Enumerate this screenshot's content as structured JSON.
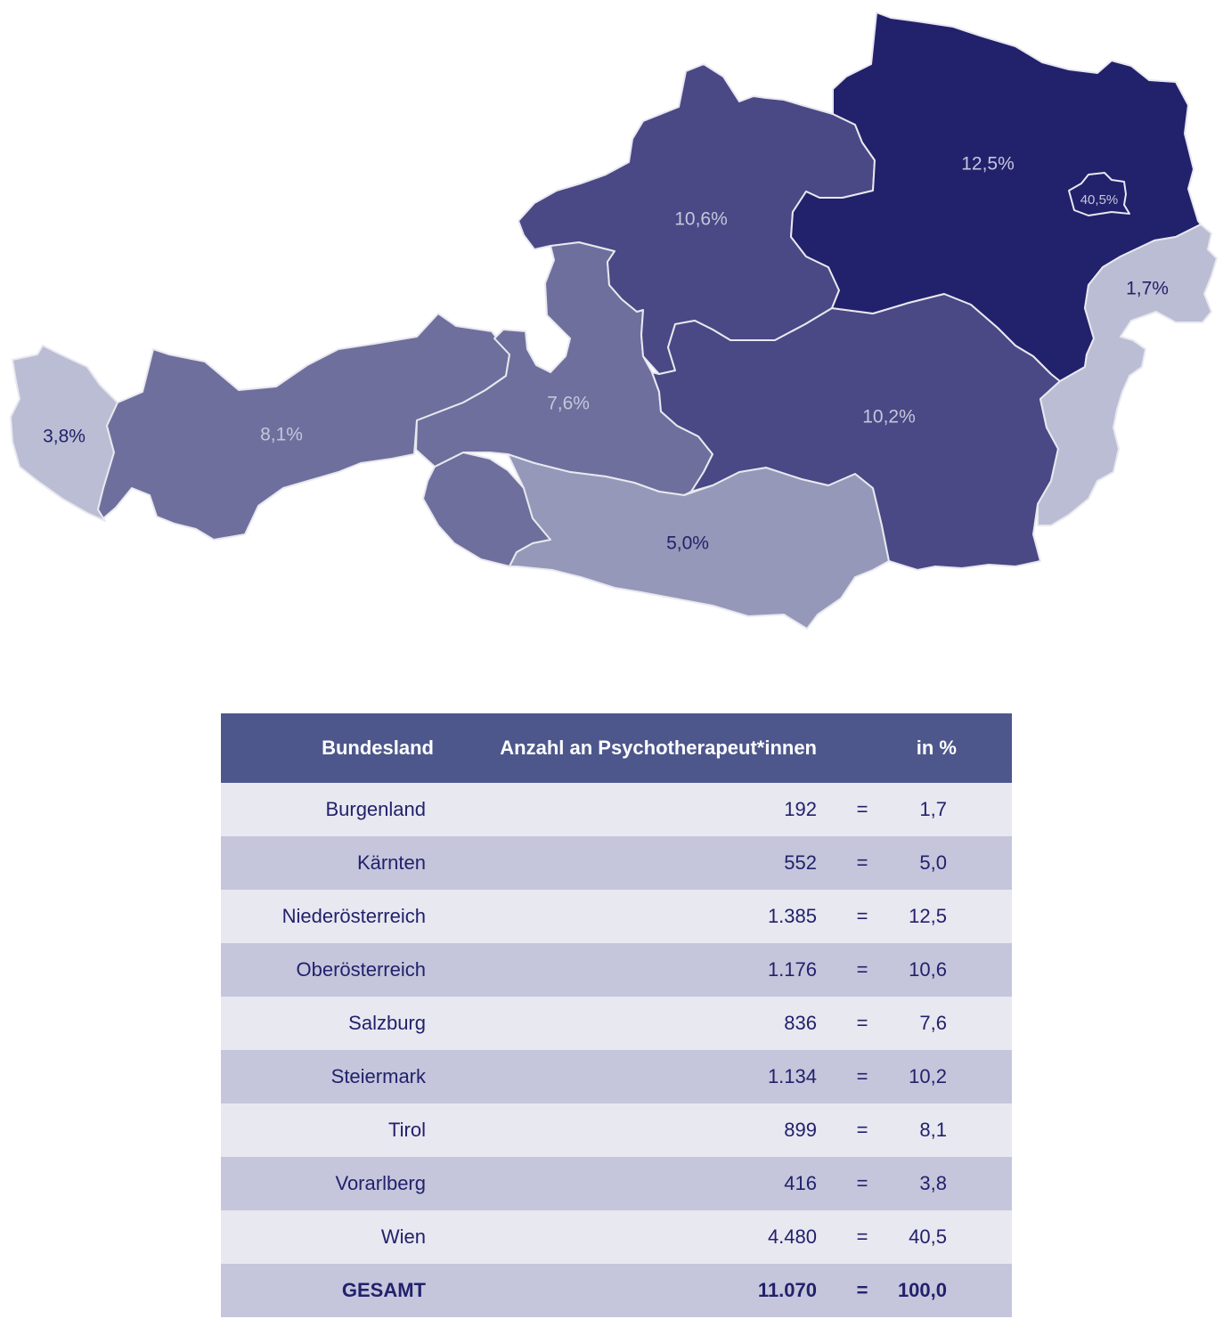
{
  "map": {
    "regions": [
      {
        "id": "vorarlberg",
        "label": "3,8%",
        "fill": "#bbbdd4",
        "label_color": "#22216b"
      },
      {
        "id": "tirol",
        "label": "8,1%",
        "fill": "#6f6f9d",
        "label_color": "#c5c6dc"
      },
      {
        "id": "salzburg",
        "label": "7,6%",
        "fill": "#6f6f9d",
        "label_color": "#c5c6dc"
      },
      {
        "id": "kaernten",
        "label": "5,0%",
        "fill": "#9698b9",
        "label_color": "#22216b"
      },
      {
        "id": "oberoesterreich",
        "label": "10,6%",
        "fill": "#4a4885",
        "label_color": "#c5c6dc"
      },
      {
        "id": "steiermark",
        "label": "10,2%",
        "fill": "#4a4885",
        "label_color": "#c5c6dc"
      },
      {
        "id": "niederoesterreich",
        "label": "12,5%",
        "fill": "#22216b",
        "label_color": "#c5c6dc"
      },
      {
        "id": "wien",
        "label": "40,5%",
        "fill": "#22216b",
        "label_color": "#c5c6dc"
      },
      {
        "id": "burgenland",
        "label": "1,7%",
        "fill": "#bbbdd4",
        "label_color": "#22216b"
      }
    ]
  },
  "table": {
    "header": {
      "land": "Bundesland",
      "count": "Anzahl an Psychotherapeut*innen",
      "pct": "in %"
    },
    "rows": [
      {
        "land": "Burgenland",
        "count": "192",
        "eq": "=",
        "pct": "1,7"
      },
      {
        "land": "Kärnten",
        "count": "552",
        "eq": "=",
        "pct": "5,0"
      },
      {
        "land": "Niederösterreich",
        "count": "1.385",
        "eq": "=",
        "pct": "12,5"
      },
      {
        "land": "Oberösterreich",
        "count": "1.176",
        "eq": "=",
        "pct": "10,6"
      },
      {
        "land": "Salzburg",
        "count": "836",
        "eq": "=",
        "pct": "7,6"
      },
      {
        "land": "Steiermark",
        "count": "1.134",
        "eq": "=",
        "pct": "10,2"
      },
      {
        "land": "Tirol",
        "count": "899",
        "eq": "=",
        "pct": "8,1"
      },
      {
        "land": "Vorarlberg",
        "count": "416",
        "eq": "=",
        "pct": "3,8"
      },
      {
        "land": "Wien",
        "count": "4.480",
        "eq": "=",
        "pct": "40,5"
      }
    ],
    "total": {
      "land": "GESAMT",
      "count": "11.070",
      "eq": "=",
      "pct": "100,0"
    }
  }
}
